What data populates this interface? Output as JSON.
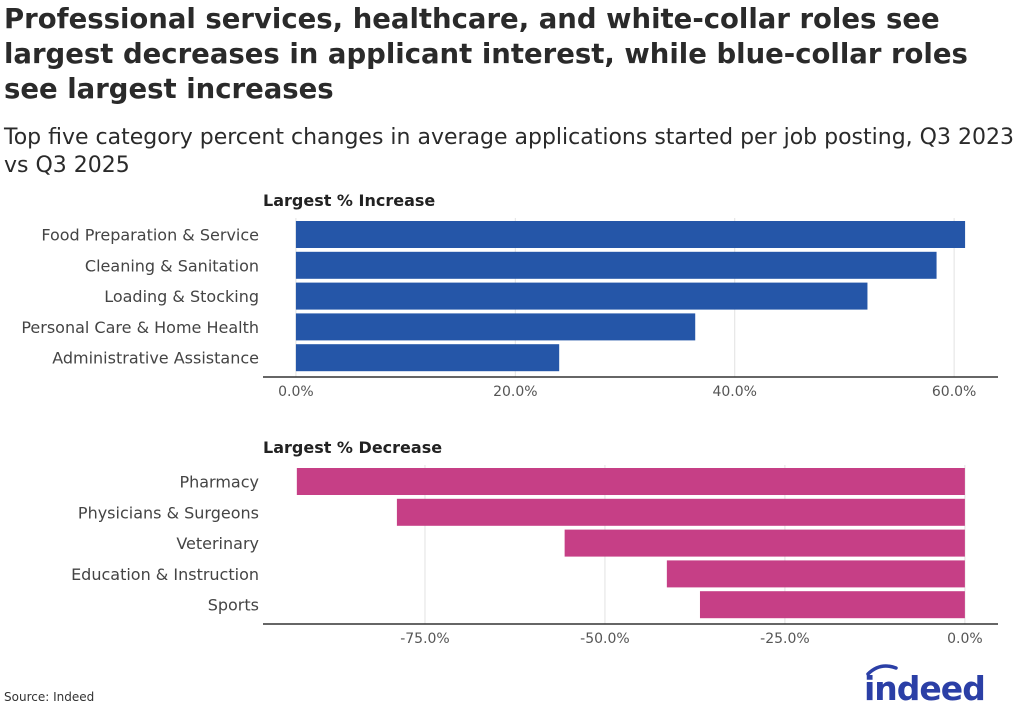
{
  "title": "Professional services, healthcare, and white-collar roles see largest decreases in applicant interest, while blue-collar roles see largest increases",
  "subtitle": "Top five category percent changes in average applications started per job posting, Q3 2023 vs Q3 2025",
  "source": "Source: Indeed",
  "logo_text": "indeed",
  "colors": {
    "increase": "#2556a8",
    "decrease": "#c63f86",
    "logo": "#2b3fa6"
  },
  "chart_data": [
    {
      "type": "bar",
      "orientation": "horizontal",
      "title": "Largest % Increase",
      "categories": [
        "Food Preparation & Service",
        "Cleaning & Sanitation",
        "Loading & Stocking",
        "Personal Care & Home Health",
        "Administrative Assistance"
      ],
      "values": [
        61.0,
        58.4,
        52.1,
        36.4,
        24.0
      ],
      "unit": "%",
      "xlim": [
        -3,
        64
      ],
      "ticks": [
        0,
        20,
        40,
        60
      ],
      "tick_labels": [
        "0.0%",
        "20.0%",
        "40.0%",
        "60.0%"
      ],
      "grid": true
    },
    {
      "type": "bar",
      "orientation": "horizontal",
      "title": "Largest % Decrease",
      "categories": [
        "Pharmacy",
        "Physicians & Surgeons",
        "Veterinary",
        "Education & Instruction",
        "Sports"
      ],
      "values": [
        -92.8,
        -78.9,
        -55.6,
        -41.4,
        -36.8
      ],
      "unit": "%",
      "xlim": [
        -97.5,
        4.6
      ],
      "ticks": [
        -75,
        -50,
        -25,
        0
      ],
      "tick_labels": [
        "-75.0%",
        "-50.0%",
        "-25.0%",
        "0.0%"
      ],
      "grid": true
    }
  ]
}
